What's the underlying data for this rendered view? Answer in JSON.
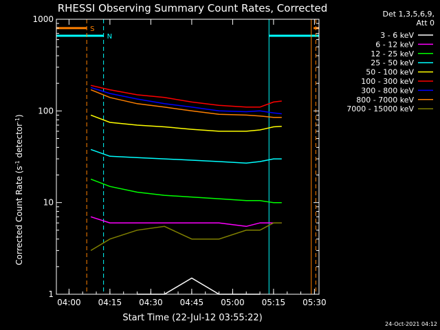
{
  "chart_data": {
    "type": "line",
    "title": "RHESSI Observing Summary Count Rates, Corrected",
    "xlabel": "Start Time (22-Jul-12 03:55:22)",
    "ylabel_main": "Corrected Count Rate (s",
    "ylabel_sup1": "-1",
    "ylabel_mid": " detector",
    "ylabel_sup2": "-1",
    "ylabel_end": ")",
    "y_scale": "log",
    "ylim": [
      1,
      1000
    ],
    "xlim": [
      "03:55:22",
      "05:31:40"
    ],
    "x_ticks": [
      "04:00",
      "04:15",
      "04:30",
      "04:45",
      "05:00",
      "05:15",
      "05:30"
    ],
    "y_ticks": [
      "1",
      "10",
      "100",
      "1000"
    ],
    "legend_placement": "outside-right",
    "legend_header": [
      "Det 1,3,5,6,9,",
      "Att 0"
    ],
    "flags": [
      {
        "name": "S",
        "color": "#ff8000",
        "level": 800,
        "segments": [
          [
            "03:55:22",
            "04:06:30"
          ],
          [
            "05:29:40",
            "05:31:40"
          ]
        ]
      },
      {
        "name": "N",
        "color": "#00ffff",
        "level": 660,
        "segments": [
          [
            "03:55:22",
            "04:12:40"
          ],
          [
            "05:13:20",
            "05:31:40"
          ]
        ]
      }
    ],
    "vertical_lines": [
      {
        "time": "04:06:30",
        "color": "#ff8000",
        "style": "dashed"
      },
      {
        "time": "04:12:40",
        "color": "#00ffff",
        "style": "dashed"
      },
      {
        "time": "05:13:20",
        "color": "#00ffff",
        "style": "solid"
      },
      {
        "time": "05:28:50",
        "color": "#ff8000",
        "style": "solid"
      },
      {
        "time": "05:30:30",
        "color": "#ff8000",
        "style": "dashed"
      }
    ],
    "series_times": [
      "04:08",
      "04:15",
      "04:25",
      "04:35",
      "04:45",
      "04:55",
      "05:05",
      "05:10",
      "05:15",
      "05:18"
    ],
    "series": [
      {
        "name": "3 - 6 keV",
        "color": "#ffffff",
        "values": [
          null,
          null,
          1,
          1,
          1.5,
          1,
          1,
          1,
          null,
          null
        ]
      },
      {
        "name": "6 - 12 keV",
        "color": "#ff00ff",
        "values": [
          7,
          6,
          6,
          6,
          6,
          6,
          5.5,
          6,
          6,
          6
        ]
      },
      {
        "name": "12 - 25 keV",
        "color": "#00ff00",
        "values": [
          18,
          15,
          13,
          12,
          11.5,
          11,
          10.5,
          10.5,
          10,
          10
        ]
      },
      {
        "name": "25 - 50 keV",
        "color": "#00ffff",
        "values": [
          38,
          32,
          31,
          30,
          29,
          28,
          27,
          28,
          30,
          30
        ]
      },
      {
        "name": "50 - 100 keV",
        "color": "#ffff00",
        "values": [
          90,
          75,
          70,
          67,
          63,
          60,
          60,
          62,
          67,
          68
        ]
      },
      {
        "name": "100 - 300 keV",
        "color": "#ff0000",
        "values": [
          190,
          170,
          150,
          140,
          125,
          115,
          110,
          110,
          125,
          128
        ]
      },
      {
        "name": "300 - 800 keV",
        "color": "#0000ff",
        "values": [
          180,
          155,
          135,
          120,
          110,
          100,
          98,
          100,
          95,
          93
        ]
      },
      {
        "name": "800 - 7000 keV",
        "color": "#ff8000",
        "values": [
          170,
          140,
          120,
          110,
          100,
          92,
          90,
          88,
          85,
          85
        ]
      },
      {
        "name": "7000 - 15000 keV",
        "color": "#808000",
        "values": [
          3,
          4,
          5,
          5.5,
          4,
          4,
          5,
          5,
          6,
          6
        ]
      }
    ],
    "footer_timestamp": "24-Oct-2021 04:12"
  }
}
